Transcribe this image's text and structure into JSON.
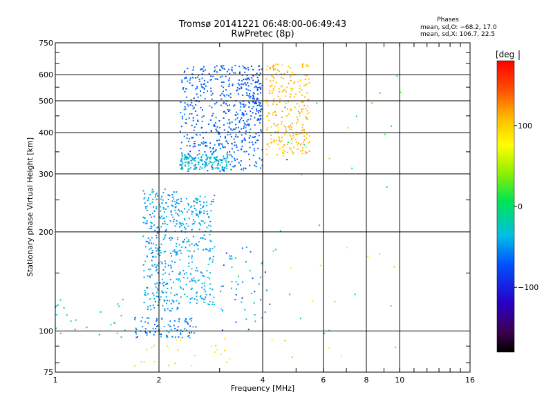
{
  "chart_data": {
    "type": "scatter",
    "title": "Tromsø 20141221 06:48:00-06:49:43",
    "subtitle": "RwPretec (8p)",
    "xlabel": "Frequency [MHz]",
    "ylabel": "Stationary phase Virtual Height [km]",
    "x_scale": "log",
    "y_scale": "log",
    "xlim": [
      1,
      16
    ],
    "ylim": [
      75,
      750
    ],
    "x_ticks": [
      1,
      2,
      4,
      6,
      8,
      10,
      16
    ],
    "x_tick_labels": [
      "1",
      "2",
      "4",
      "6",
      "8",
      "10",
      "16"
    ],
    "y_ticks": [
      75,
      100,
      200,
      300,
      400,
      500,
      600,
      750
    ],
    "y_tick_labels": [
      "75",
      "100",
      "200",
      "300",
      "400",
      "500",
      "600",
      "750"
    ],
    "grid": true,
    "phases_box": {
      "title": "Phases",
      "line_o": "mean, sd,O: −68.2, 17.0",
      "line_x": "mean, sd,X: 106.7, 22.5"
    },
    "colorbar": {
      "label": "[deg",
      "ticks": [
        100,
        0,
        -100
      ],
      "tick_labels": [
        "100",
        "0",
        "−100"
      ],
      "range": [
        -180,
        180
      ],
      "colormap": "rainbow: black→purple→blue→cyan→green→yellow→red"
    },
    "point_groups": [
      {
        "desc": "F-layer trace (main, blue)",
        "x_range": [
          2.3,
          4.0
        ],
        "y_range": [
          305,
          640
        ],
        "phase_mean": -70,
        "phase_sd": 15,
        "count": 520
      },
      {
        "desc": "F-layer trace (cyan edge)",
        "x_range": [
          2.3,
          3.2
        ],
        "y_range": [
          310,
          345
        ],
        "phase_mean": -30,
        "phase_sd": 10,
        "count": 120
      },
      {
        "desc": "F-layer high-freq part (orange/yellow)",
        "x_range": [
          4.1,
          5.5
        ],
        "y_range": [
          340,
          650
        ],
        "phase_mean": 110,
        "phase_sd": 20,
        "count": 260
      },
      {
        "desc": "Upper arm (blue)",
        "x_range": [
          3.4,
          4.0
        ],
        "y_range": [
          430,
          640
        ],
        "phase_mean": -80,
        "phase_sd": 12,
        "count": 90
      },
      {
        "desc": "E/F1 region column near 2 MHz",
        "x_range": [
          1.8,
          2.3
        ],
        "y_range": [
          115,
          270
        ],
        "phase_mean": -50,
        "phase_sd": 20,
        "count": 300
      },
      {
        "desc": "E/F1 region column near 2.5 MHz",
        "x_range": [
          2.3,
          2.9
        ],
        "y_range": [
          120,
          260
        ],
        "phase_mean": -45,
        "phase_sd": 20,
        "count": 220
      },
      {
        "desc": "Low-height band near 100 km",
        "x_range": [
          1.7,
          2.6
        ],
        "y_range": [
          95,
          110
        ],
        "phase_mean": -60,
        "phase_sd": 25,
        "count": 90
      },
      {
        "desc": "Low-freq scatter",
        "x_range": [
          1.0,
          1.6
        ],
        "y_range": [
          95,
          125
        ],
        "phase_mean": -30,
        "phase_sd": 15,
        "count": 25
      },
      {
        "desc": "Low-height warm scatter",
        "x_range": [
          1.7,
          3.3
        ],
        "y_range": [
          78,
          95
        ],
        "phase_mean": 90,
        "phase_sd": 30,
        "count": 25
      },
      {
        "desc": "Mid scatter",
        "x_range": [
          3.0,
          4.2
        ],
        "y_range": [
          100,
          180
        ],
        "phase_mean": -50,
        "phase_sd": 60,
        "count": 50
      },
      {
        "desc": "Sparse high-freq scatter",
        "x_range": [
          4.2,
          10.5
        ],
        "y_range": [
          80,
          650
        ],
        "phase_mean": 30,
        "phase_sd": 90,
        "count": 45
      }
    ]
  }
}
